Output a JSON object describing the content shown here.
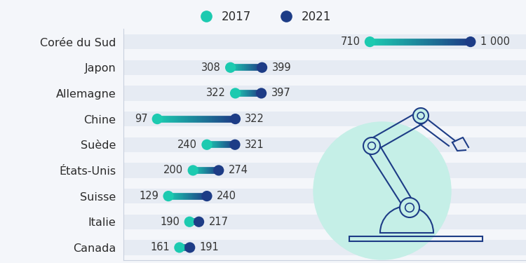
{
  "chart_data": {
    "type": "dumbbell",
    "orientation": "horizontal",
    "categories": [
      "Corée du Sud",
      "Japon",
      "Allemagne",
      "Chine",
      "Suède",
      "États-Unis",
      "Suisse",
      "Italie",
      "Canada"
    ],
    "series": [
      {
        "name": "2017",
        "color": "#1ccab0",
        "values": [
          710,
          308,
          322,
          97,
          240,
          200,
          129,
          190,
          161
        ]
      },
      {
        "name": "2021",
        "color": "#1d3c86",
        "values": [
          1000,
          399,
          397,
          322,
          321,
          274,
          240,
          217,
          191
        ],
        "value_labels": [
          "1 000",
          "399",
          "397",
          "322",
          "321",
          "274",
          "240",
          "217",
          "191"
        ]
      }
    ],
    "xlim": [
      0,
      1160
    ],
    "tick_labels": "y",
    "data_labels": true,
    "legend": "upper center",
    "grid": false
  }
}
